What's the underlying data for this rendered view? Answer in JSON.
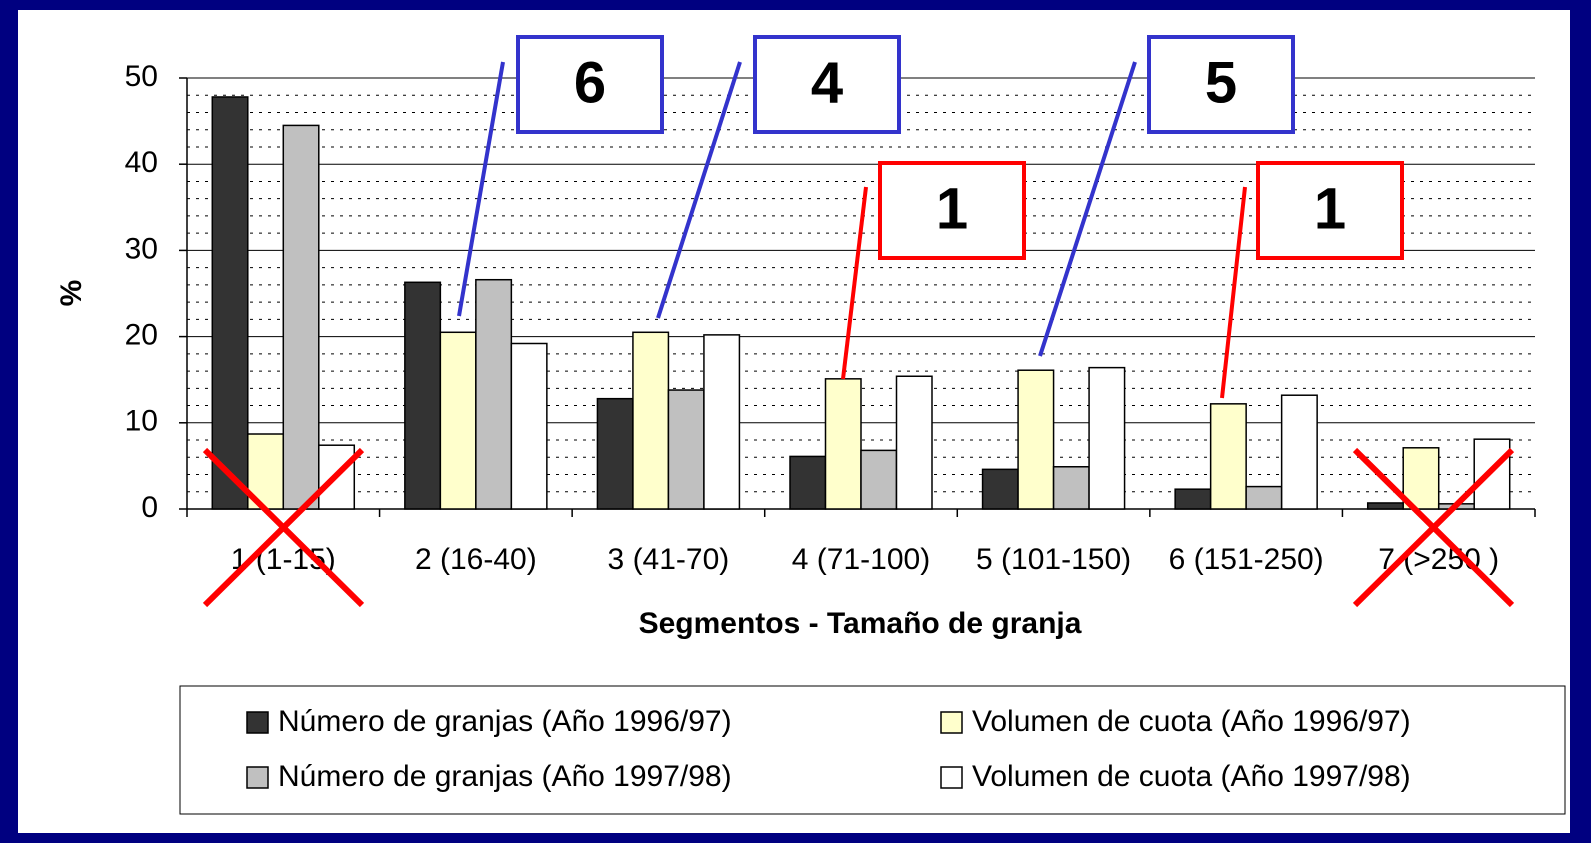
{
  "chart_data": {
    "type": "bar",
    "x_label": "Segmentos - Tamaño de granja",
    "y_label": "%",
    "categories": [
      "1 (1-15)",
      "2 (16-40)",
      "3 (41-70)",
      "4 (71-100)",
      "5 (101-150)",
      "6 (151-250)",
      "7 (>250 )"
    ],
    "series": [
      {
        "name": "Número de granjas (Año 1996/97)",
        "color": "#333333",
        "values": [
          47.8,
          26.3,
          12.8,
          6.1,
          4.6,
          2.3,
          0.7
        ]
      },
      {
        "name": "Volumen de cuota (Año 1996/97)",
        "color": "#ffffcc",
        "values": [
          8.7,
          20.5,
          20.5,
          15.1,
          16.1,
          12.2,
          7.1
        ]
      },
      {
        "name": "Número de granjas (Año 1997/98)",
        "color": "#c0c0c0",
        "values": [
          44.5,
          26.6,
          13.8,
          6.8,
          4.9,
          2.6,
          0.6
        ]
      },
      {
        "name": "Volumen de cuota (Año 1997/98)",
        "color": "#ffffff",
        "values": [
          7.4,
          19.2,
          20.2,
          15.4,
          16.4,
          13.2,
          8.1
        ]
      }
    ],
    "ylim": [
      0,
      50
    ],
    "yticks": [
      0,
      10,
      20,
      30,
      40,
      50
    ],
    "grid": true,
    "minor_grid": true,
    "legend": "bottom",
    "annotations": [
      {
        "text": "6",
        "color": "#3333cc"
      },
      {
        "text": "4",
        "color": "#3333cc"
      },
      {
        "text": "5",
        "color": "#3333cc"
      },
      {
        "text": "1",
        "color": "#ff0000"
      },
      {
        "text": "1",
        "color": "#ff0000"
      }
    ]
  }
}
